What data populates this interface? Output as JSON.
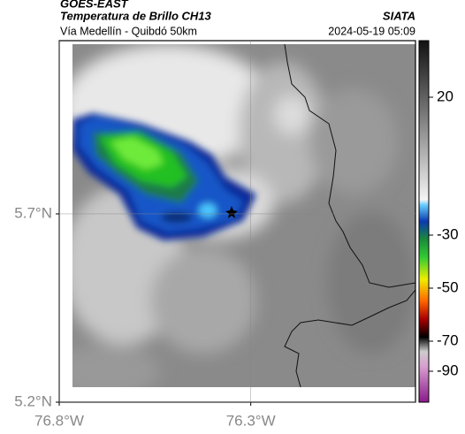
{
  "header": {
    "satellite": "GOES-EAST",
    "product": "Temperatura de Brillo CH13",
    "region": "Vía Medellín - Quibdó 50km",
    "organization": "SIATA",
    "timestamp": "2024-05-19 05:09"
  },
  "map": {
    "xlim": [
      -76.8,
      -75.87
    ],
    "ylim": [
      5.2,
      6.16
    ],
    "xticks": [
      {
        "value": -76.8,
        "label": "76.8°W"
      },
      {
        "value": -76.3,
        "label": "76.3°W"
      }
    ],
    "yticks": [
      {
        "value": 5.7,
        "label": "5.7°N"
      },
      {
        "value": 5.2,
        "label": "5.2°N"
      }
    ]
  },
  "colorbar": {
    "ticks": [
      20,
      -30,
      -50,
      -70,
      -90
    ]
  }
}
